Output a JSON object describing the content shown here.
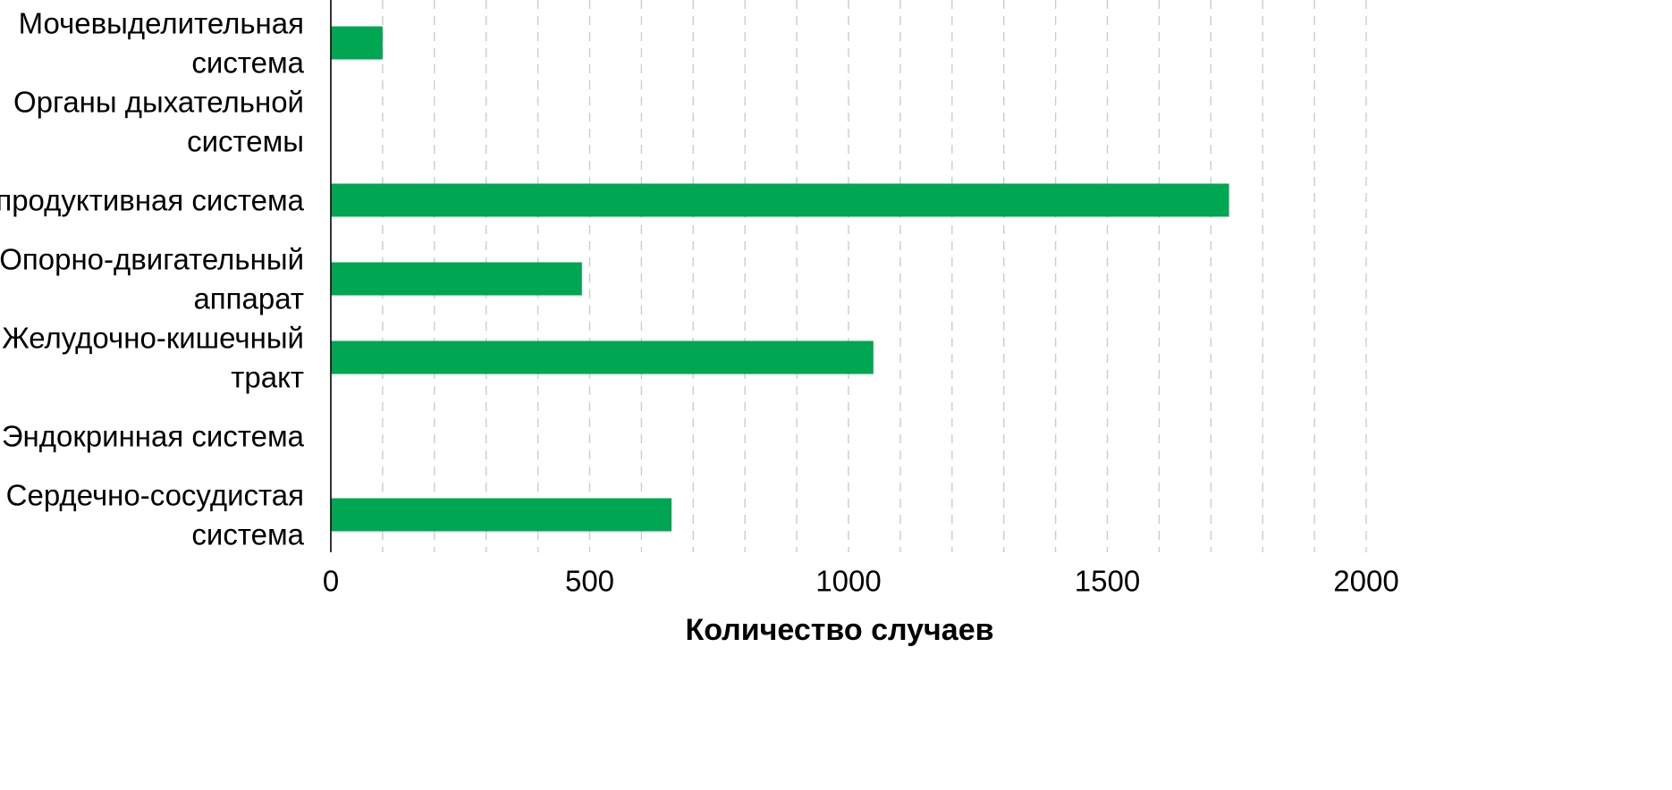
{
  "chart_data": {
    "type": "bar",
    "orientation": "horizontal",
    "categories": [
      [
        "Мочевыделительная",
        "система"
      ],
      [
        "Органы дыхательной",
        "системы"
      ],
      [
        "Репродуктивная система"
      ],
      [
        "Опорно-двигательный",
        "аппарат"
      ],
      [
        "Желудочно-кишечный",
        "тракт"
      ],
      [
        "Эндокринная система"
      ],
      [
        "Сердечно-сосудистая",
        "система"
      ]
    ],
    "values": [
      100,
      0,
      1735,
      485,
      1048,
      0,
      658
    ],
    "xlabel": "Количество случаев",
    "ylabel": "",
    "xlim": [
      0,
      2000
    ],
    "x_ticks": [
      0,
      500,
      1000,
      1500,
      2000
    ],
    "x_minor_step": 100,
    "grid": "vertical-dashed",
    "bar_color": "#00a651",
    "grid_color": "#cccccc"
  }
}
